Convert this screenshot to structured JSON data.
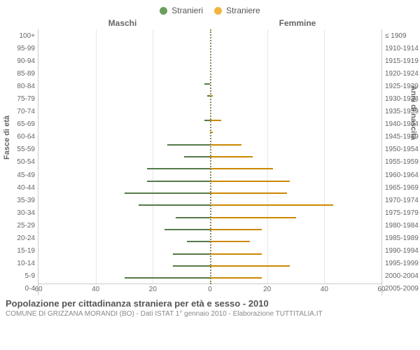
{
  "legend": {
    "male": {
      "label": "Stranieri",
      "color": "#6b9e5e"
    },
    "female": {
      "label": "Straniere",
      "color": "#f2b43c"
    }
  },
  "columns": {
    "left": "Maschi",
    "right": "Femmine"
  },
  "axis_titles": {
    "left": "Fasce di età",
    "right": "Anni di nascita"
  },
  "title": "Popolazione per cittadinanza straniera per età e sesso - 2010",
  "subtitle": "COMUNE DI GRIZZANA MORANDI (BO) - Dati ISTAT 1° gennaio 2010 - Elaborazione TUTTITALIA.IT",
  "chart": {
    "type": "population-pyramid",
    "xmax": 60,
    "xticks": [
      60,
      40,
      20,
      0,
      20,
      40,
      60
    ],
    "background_color": "#ffffff",
    "grid_color": "#e6e6e6",
    "center_color": "#888855",
    "male_color": "#6b9e5e",
    "male_border": "#557a4a",
    "female_color": "#f2b43c",
    "female_border": "#cc8800",
    "label_fontsize": 10,
    "rows": [
      {
        "age": "100+",
        "birth": "≤ 1909",
        "m": 0,
        "f": 0
      },
      {
        "age": "95-99",
        "birth": "1910-1914",
        "m": 0,
        "f": 0
      },
      {
        "age": "90-94",
        "birth": "1915-1919",
        "m": 0,
        "f": 0
      },
      {
        "age": "85-89",
        "birth": "1920-1924",
        "m": 0,
        "f": 0
      },
      {
        "age": "80-84",
        "birth": "1925-1929",
        "m": 2,
        "f": 0
      },
      {
        "age": "75-79",
        "birth": "1930-1934",
        "m": 1,
        "f": 1
      },
      {
        "age": "70-74",
        "birth": "1935-1939",
        "m": 0,
        "f": 0
      },
      {
        "age": "65-69",
        "birth": "1940-1944",
        "m": 2,
        "f": 4
      },
      {
        "age": "60-64",
        "birth": "1945-1949",
        "m": 0,
        "f": 1
      },
      {
        "age": "55-59",
        "birth": "1950-1954",
        "m": 15,
        "f": 11
      },
      {
        "age": "50-54",
        "birth": "1955-1959",
        "m": 9,
        "f": 15
      },
      {
        "age": "45-49",
        "birth": "1960-1964",
        "m": 22,
        "f": 22
      },
      {
        "age": "40-44",
        "birth": "1965-1969",
        "m": 22,
        "f": 28
      },
      {
        "age": "35-39",
        "birth": "1970-1974",
        "m": 30,
        "f": 27
      },
      {
        "age": "30-34",
        "birth": "1975-1979",
        "m": 25,
        "f": 43
      },
      {
        "age": "25-29",
        "birth": "1980-1984",
        "m": 12,
        "f": 30
      },
      {
        "age": "20-24",
        "birth": "1985-1989",
        "m": 16,
        "f": 18
      },
      {
        "age": "15-19",
        "birth": "1990-1994",
        "m": 8,
        "f": 14
      },
      {
        "age": "10-14",
        "birth": "1995-1999",
        "m": 13,
        "f": 18
      },
      {
        "age": "5-9",
        "birth": "2000-2004",
        "m": 13,
        "f": 28
      },
      {
        "age": "0-4",
        "birth": "2005-2009",
        "m": 30,
        "f": 18
      }
    ]
  }
}
